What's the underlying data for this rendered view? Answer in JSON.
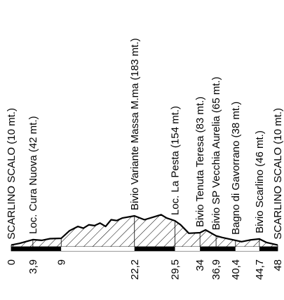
{
  "chart_data": {
    "type": "area",
    "title": "",
    "xlabel": "",
    "ylabel": "",
    "total_km": 48,
    "x": [
      0,
      1.5,
      3.9,
      5.5,
      7,
      9,
      10.5,
      12,
      13,
      14,
      15,
      16,
      17,
      18,
      19,
      20,
      22.2,
      24,
      25.5,
      27,
      28,
      29.5,
      30.5,
      32,
      34,
      35,
      36.9,
      38,
      40.4,
      41.5,
      43,
      44.7,
      46,
      48
    ],
    "y": [
      10,
      20,
      42,
      38,
      48,
      50,
      95,
      120,
      110,
      130,
      125,
      140,
      120,
      160,
      155,
      170,
      183,
      160,
      175,
      190,
      170,
      154,
      130,
      80,
      83,
      100,
      65,
      55,
      38,
      30,
      40,
      46,
      25,
      10
    ],
    "y_max": 183,
    "waypoints": [
      {
        "km": 0,
        "name": "SCARLINO SCALO (10 mt.)"
      },
      {
        "km": 3.9,
        "name": "Loc. Cura Nuova (42 mt.)"
      },
      {
        "km": 22.2,
        "name": "Bivio Variante Massa M.ma (183 mt.)"
      },
      {
        "km": 29.5,
        "name": "Loc. La Pesta (154 mt.)"
      },
      {
        "km": 34,
        "name": "Bivio Tenuta Teresa (83 mt.)"
      },
      {
        "km": 36.9,
        "name": "Bivio SP Vecchia Aurelia (65 mt.)"
      },
      {
        "km": 40.4,
        "name": "Bagno di Gavorrano (38 mt.)"
      },
      {
        "km": 44.7,
        "name": "Bivio Scarlino (46 mt.)"
      },
      {
        "km": 48,
        "name": "SCARLINO SCALO (10 mt.)"
      }
    ],
    "km_labels": [
      {
        "km": 0,
        "text": "0"
      },
      {
        "km": 3.9,
        "text": "3,9"
      },
      {
        "km": 9,
        "text": "9"
      },
      {
        "km": 22.2,
        "text": "22,2"
      },
      {
        "km": 29.5,
        "text": "29,5"
      },
      {
        "km": 34,
        "text": "34"
      },
      {
        "km": 36.9,
        "text": "36,9"
      },
      {
        "km": 40.4,
        "text": "40,4"
      },
      {
        "km": 44.7,
        "text": "44,7"
      },
      {
        "km": 48,
        "text": "48"
      }
    ],
    "segments": [
      {
        "from": 0,
        "to": 9,
        "fill": "#000000"
      },
      {
        "from": 9,
        "to": 22.2,
        "fill": "#ffffff"
      },
      {
        "from": 22.2,
        "to": 29.5,
        "fill": "#000000"
      },
      {
        "from": 29.5,
        "to": 34,
        "fill": "#ffffff"
      },
      {
        "from": 34,
        "to": 40.4,
        "fill": "#000000"
      },
      {
        "from": 40.4,
        "to": 44.7,
        "fill": "#ffffff"
      },
      {
        "from": 44.7,
        "to": 48,
        "fill": "#000000"
      }
    ],
    "colors": {
      "line": "#000000",
      "hatch": "#000000",
      "background": "#ffffff"
    }
  }
}
